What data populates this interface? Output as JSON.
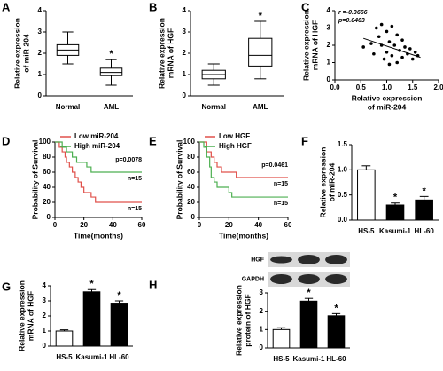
{
  "chart_data": [
    {
      "panel": "A",
      "type": "box",
      "categories": [
        "Normal",
        "AML"
      ],
      "ylabel": [
        "Relative expression",
        "of miR-204"
      ],
      "min": [
        1.5,
        0.5
      ],
      "q1": [
        1.9,
        0.95
      ],
      "median": [
        2.15,
        1.1
      ],
      "q3": [
        2.4,
        1.3
      ],
      "max": [
        3.0,
        1.7
      ],
      "star_labels": [
        null,
        "*"
      ],
      "ylim": [
        0,
        4
      ],
      "yticks": [
        0,
        1,
        2,
        3,
        4
      ]
    },
    {
      "panel": "B",
      "type": "box",
      "categories": [
        "Normal",
        "AML"
      ],
      "ylabel": [
        "Relative expression",
        "mRNA of HGF"
      ],
      "min": [
        0.5,
        0.8
      ],
      "q1": [
        0.8,
        1.4
      ],
      "median": [
        1.0,
        1.9
      ],
      "q3": [
        1.2,
        2.7
      ],
      "max": [
        1.5,
        3.5
      ],
      "star_labels": [
        null,
        "*"
      ],
      "ylim": [
        0,
        4
      ],
      "yticks": [
        0,
        1,
        2,
        3,
        4
      ]
    },
    {
      "panel": "C",
      "type": "scatter",
      "ylabel": [
        "Relative expression",
        "mRNA of HGF"
      ],
      "xlabel": [
        "Relative expression",
        "of miR-204"
      ],
      "annotations": [
        "r =-0.3666",
        "p=0.0463"
      ],
      "x": [
        0.55,
        0.7,
        0.75,
        0.8,
        0.85,
        0.9,
        0.9,
        0.95,
        1.0,
        1.0,
        1.05,
        1.05,
        1.1,
        1.1,
        1.15,
        1.2,
        1.2,
        1.25,
        1.3,
        1.3,
        1.35,
        1.4,
        1.45,
        1.5,
        1.55,
        1.6
      ],
      "values": [
        1.9,
        2.1,
        1.5,
        3.0,
        2.5,
        3.2,
        2.0,
        1.2,
        2.8,
        1.6,
        2.2,
        0.9,
        3.1,
        1.4,
        2.0,
        1.0,
        2.6,
        1.7,
        1.3,
        2.3,
        1.9,
        1.5,
        1.8,
        1.2,
        1.6,
        1.4
      ],
      "fit_line": {
        "x": [
          0.55,
          1.65
        ],
        "y": [
          2.4,
          1.3
        ]
      },
      "xlim": [
        0,
        2
      ],
      "xticks": [
        {
          "value": 0,
          "label": "0.0"
        },
        {
          "value": 0.5,
          "label": "0.5"
        },
        {
          "value": 1,
          "label": "1.0"
        },
        {
          "value": 1.5,
          "label": "1.5"
        },
        {
          "value": 2,
          "label": "2.0"
        }
      ],
      "ylim": [
        0,
        4
      ],
      "yticks": [
        0,
        1,
        2,
        3,
        4
      ]
    },
    {
      "panel": "D",
      "type": "line",
      "ylabel": [
        "Probability of Survival"
      ],
      "xlabel": [
        "Time(months)"
      ],
      "p_value": "p=0.0078",
      "n_labels": [
        "n=15",
        "n=15"
      ],
      "series": [
        {
          "name": "Low miR-204",
          "color": "#e0504a",
          "x": [
            0,
            3,
            5,
            7,
            8,
            10,
            12,
            14,
            16,
            18,
            20,
            25,
            28,
            60
          ],
          "values": [
            100,
            93,
            87,
            80,
            73,
            67,
            60,
            53,
            47,
            40,
            33,
            27,
            20,
            20
          ]
        },
        {
          "name": "High miR-204",
          "color": "#4caf50",
          "x": [
            0,
            5,
            8,
            12,
            15,
            22,
            25,
            45,
            60
          ],
          "values": [
            100,
            93,
            87,
            80,
            73,
            67,
            60,
            60,
            60
          ]
        }
      ],
      "xlim": [
        0,
        60
      ],
      "xticks": [
        0,
        20,
        40,
        60
      ],
      "ylim": [
        0,
        100
      ],
      "yticks": [
        0,
        20,
        40,
        60,
        80,
        100
      ]
    },
    {
      "panel": "E",
      "type": "line",
      "ylabel": [
        "Probability of Survival"
      ],
      "xlabel": [
        "Time(months)"
      ],
      "p_value": "p=0.0461",
      "n_labels": [
        "n=15",
        "n=15"
      ],
      "series": [
        {
          "name": "Low HGF",
          "color": "#e0504a",
          "x": [
            0,
            5,
            8,
            10,
            12,
            15,
            25,
            60
          ],
          "values": [
            100,
            87,
            80,
            73,
            67,
            60,
            53,
            53
          ]
        },
        {
          "name": "High HGF",
          "color": "#4caf50",
          "x": [
            0,
            3,
            5,
            7,
            8,
            10,
            12,
            20,
            22,
            60
          ],
          "values": [
            100,
            93,
            80,
            67,
            53,
            47,
            40,
            33,
            27,
            27
          ]
        }
      ],
      "xlim": [
        0,
        60
      ],
      "xticks": [
        0,
        20,
        40,
        60
      ],
      "ylim": [
        0,
        100
      ],
      "yticks": [
        0,
        20,
        40,
        60,
        80,
        100
      ]
    },
    {
      "panel": "F",
      "type": "bar",
      "categories": [
        "HS-5",
        "Kasumi-1",
        "HL-60"
      ],
      "ylabel": [
        "Relative expression",
        "of miR-204"
      ],
      "values": [
        1.0,
        0.3,
        0.4
      ],
      "errors": [
        0.08,
        0.04,
        0.07
      ],
      "colors": [
        "#ffffff",
        "#000000",
        "#000000"
      ],
      "star_labels": [
        null,
        "*",
        "*"
      ],
      "ylim": [
        0,
        1.5
      ],
      "yticks": [
        {
          "value": 0,
          "label": "0.0"
        },
        {
          "value": 0.5,
          "label": "0.5"
        },
        {
          "value": 1,
          "label": "1.0"
        },
        {
          "value": 1.5,
          "label": "1.5"
        }
      ]
    },
    {
      "panel": "G",
      "type": "bar",
      "categories": [
        "HS-5",
        "Kasumi-1",
        "HL-60"
      ],
      "ylabel": [
        "Relative expression",
        "mRNA of HGF"
      ],
      "values": [
        1.0,
        3.6,
        2.85
      ],
      "errors": [
        0.08,
        0.15,
        0.15
      ],
      "colors": [
        "#ffffff",
        "#000000",
        "#000000"
      ],
      "star_labels": [
        null,
        "*",
        "*"
      ],
      "ylim": [
        0,
        4
      ],
      "yticks": [
        0,
        1,
        2,
        3,
        4
      ]
    },
    {
      "panel": "H",
      "type": "bar",
      "categories": [
        "HS-5",
        "Kasumi-1",
        "HL-60"
      ],
      "ylabel": [
        "Relative expression",
        "protein of HGF"
      ],
      "blot_labels": [
        "HGF",
        "GAPDH"
      ],
      "values": [
        1.0,
        2.55,
        1.75
      ],
      "errors": [
        0.1,
        0.15,
        0.12
      ],
      "colors": [
        "#ffffff",
        "#000000",
        "#000000"
      ],
      "star_labels": [
        null,
        "*",
        "*"
      ],
      "ylim": [
        0,
        3
      ],
      "yticks": [
        0,
        1,
        2,
        3
      ]
    }
  ]
}
